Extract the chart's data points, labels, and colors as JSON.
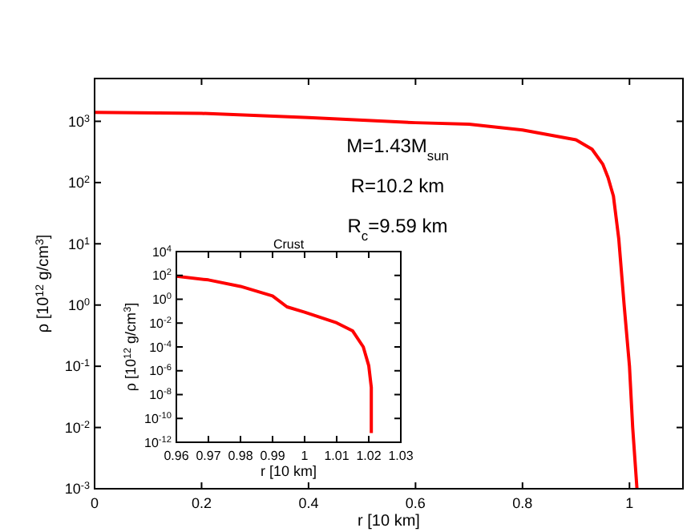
{
  "chart_data": [
    {
      "type": "line",
      "xlabel": "r [10 km]",
      "ylabel": "ρ [10$^{12}$ g/cm$^{3}$]",
      "log": "y",
      "xlim": [
        0,
        1.1
      ],
      "ylim": [
        0.001,
        5000
      ],
      "xticks": [
        0,
        0.2,
        0.4,
        0.6,
        0.8,
        1
      ],
      "yticks": [
        {
          "value": 0.001,
          "label": "10$^{-3}$"
        },
        {
          "value": 0.01,
          "label": "10$^{-2}$"
        },
        {
          "value": 0.1,
          "label": "10$^{-1}$"
        },
        {
          "value": 1,
          "label": "10$^{0}$"
        },
        {
          "value": 10,
          "label": "10$^{1}$"
        },
        {
          "value": 100,
          "label": "10$^{2}$"
        },
        {
          "value": 1000,
          "label": "10$^{3}$"
        }
      ],
      "x": [
        0,
        0.2,
        0.4,
        0.6,
        0.7,
        0.8,
        0.9,
        0.93,
        0.95,
        0.96,
        0.97,
        0.98,
        0.99,
        1.0,
        1.006,
        1.014
      ],
      "series": [
        {
          "color": "#ff0000",
          "values": [
            1400,
            1350,
            1150,
            950,
            900,
            720,
            500,
            350,
            200,
            120,
            60,
            12,
            1,
            0.1,
            0.01,
            0.001
          ]
        }
      ],
      "annotations": [
        "M=1.43M$_{sun}$",
        "R=10.2 km",
        "R$_{c}$=9.59 km"
      ]
    },
    {
      "type": "line",
      "title": "Crust",
      "xlabel": "r [10 km]",
      "ylabel": "ρ [10$^{12}$ g/cm$^{3}$]",
      "log": "y",
      "xlim": [
        0.96,
        1.03
      ],
      "ylim": [
        1e-12,
        10000
      ],
      "xticks": [
        {
          "value": 0.96,
          "label": "0.96"
        },
        {
          "value": 0.97,
          "label": "0.97"
        },
        {
          "value": 0.98,
          "label": "0.98"
        },
        {
          "value": 0.99,
          "label": "0.99"
        },
        {
          "value": 1,
          "label": "1"
        },
        {
          "value": 1.01,
          "label": "1.01"
        },
        {
          "value": 1.02,
          "label": "1.02"
        },
        {
          "value": 1.03,
          "label": "1.03"
        }
      ],
      "yticks": [
        {
          "value": 1e-12,
          "label": "10$^{-12}$"
        },
        {
          "value": 1e-10,
          "label": "10$^{-10}$"
        },
        {
          "value": 1e-08,
          "label": "10$^{-8}$"
        },
        {
          "value": 1e-06,
          "label": "10$^{-6}$"
        },
        {
          "value": 0.0001,
          "label": "10$^{-4}$"
        },
        {
          "value": 0.01,
          "label": "10$^{-2}$"
        },
        {
          "value": 1,
          "label": "10$^{0}$"
        },
        {
          "value": 100,
          "label": "10$^{2}$"
        },
        {
          "value": 10000,
          "label": "10$^{4}$"
        }
      ],
      "x": [
        0.96,
        0.97,
        0.98,
        0.99,
        0.9945,
        1.0,
        1.01,
        1.015,
        1.0183,
        1.02,
        1.0208,
        1.0208
      ],
      "series": [
        {
          "color": "#ff0000",
          "values": [
            85,
            42,
            12,
            1.9,
            0.23,
            0.083,
            0.0105,
            0.0022,
            0.0001,
            2.7e-06,
            4e-08,
            6e-12
          ]
        }
      ],
      "marker": "none"
    }
  ]
}
